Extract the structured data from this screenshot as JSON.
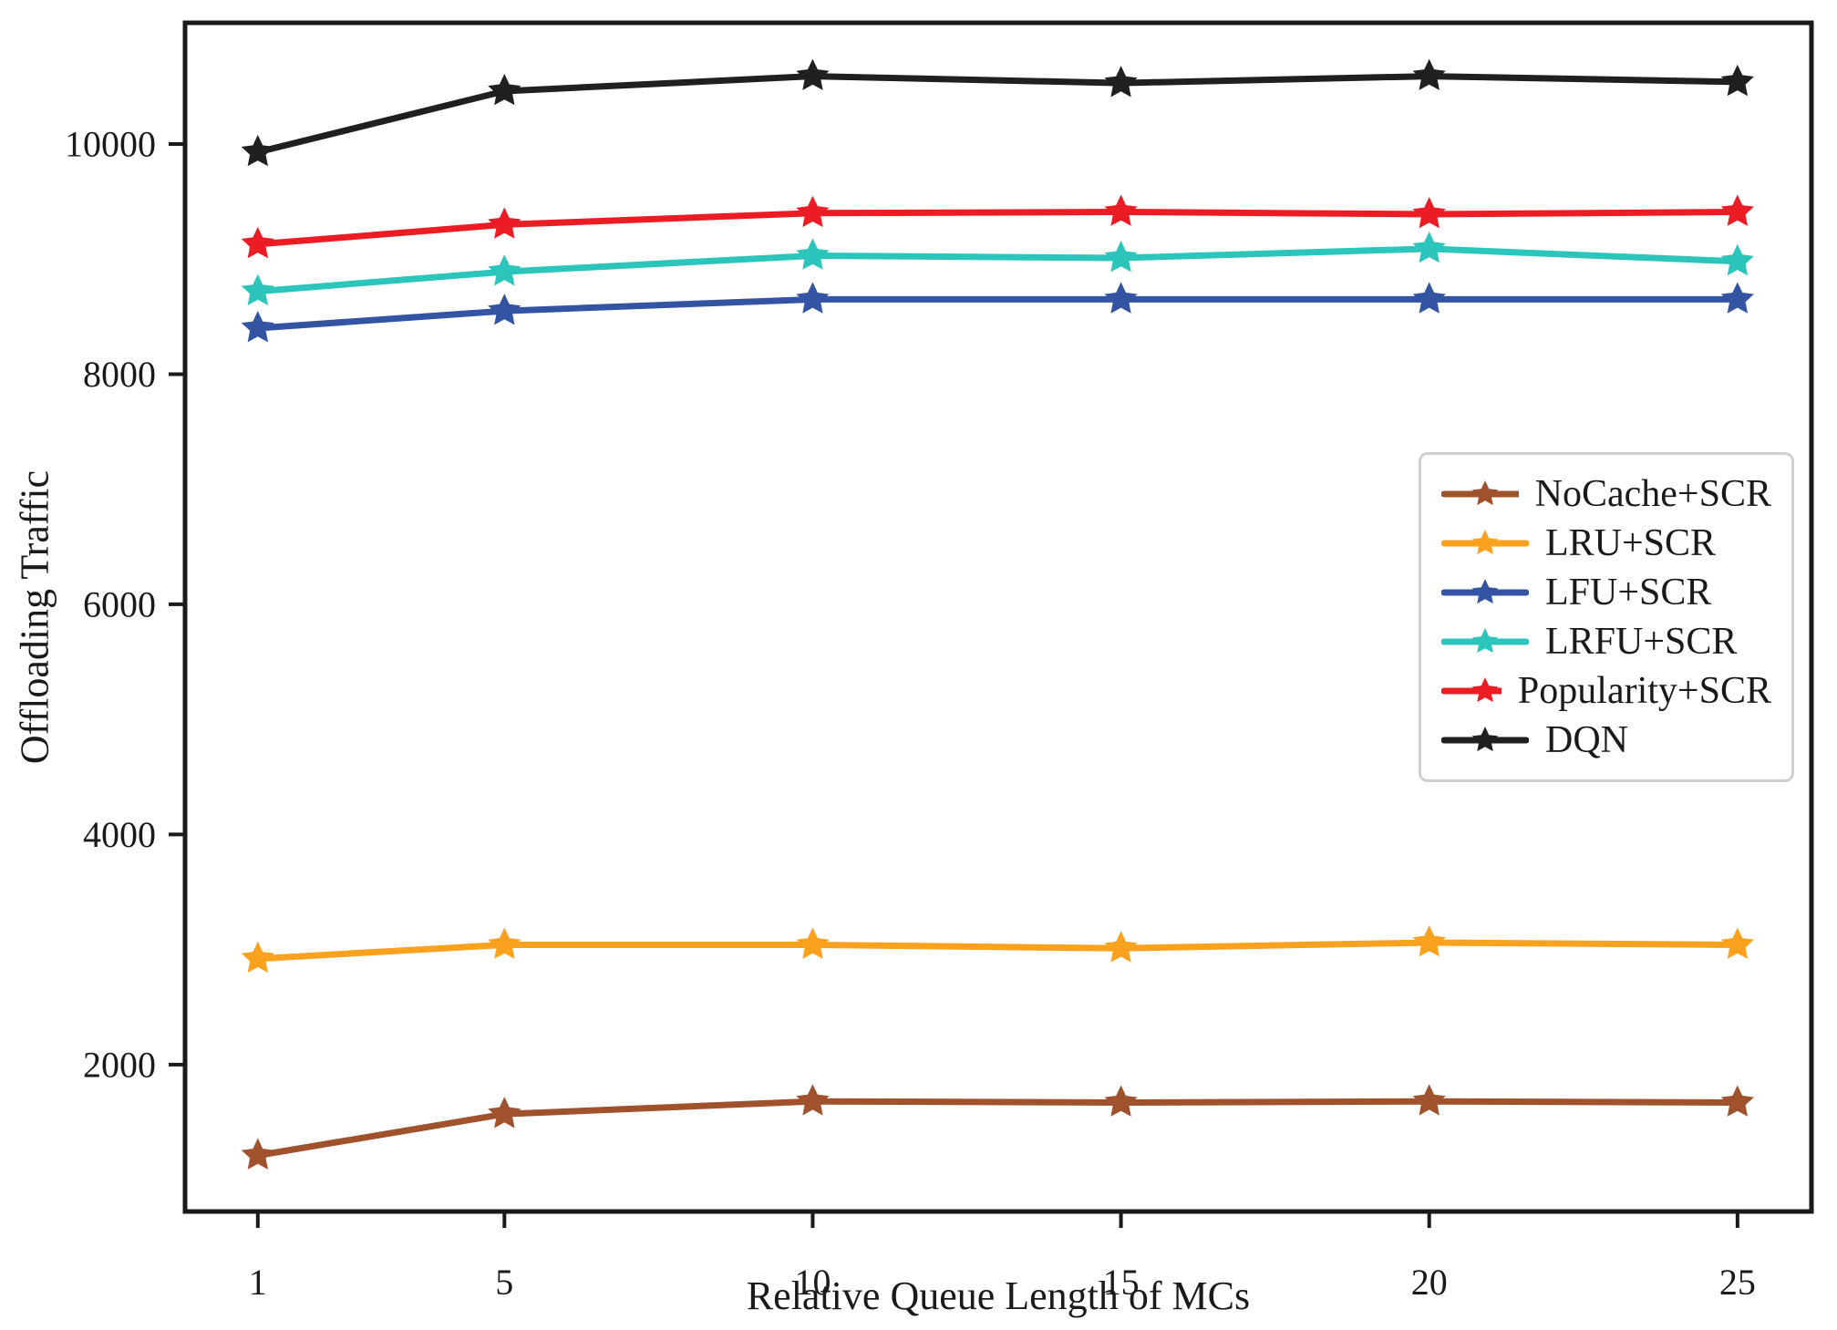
{
  "figure": {
    "background": "#ffffff",
    "axis_color": "#1a1a1a"
  },
  "chart_data": {
    "type": "line",
    "title": "",
    "xlabel": "Relative Queue Length of MCs",
    "ylabel": "Offloading Traffic",
    "x": [
      1,
      5,
      10,
      15,
      20,
      25
    ],
    "xticks": [
      "1",
      "5",
      "10",
      "15",
      "20",
      "25"
    ],
    "yticks": [
      "2000",
      "4000",
      "6000",
      "8000",
      "10000"
    ],
    "ytick_values": [
      2000,
      4000,
      6000,
      8000,
      10000
    ],
    "xlim": [
      -0.18,
      26.2
    ],
    "ylim": [
      723,
      11054
    ],
    "grid": false,
    "legend_position": "center-right",
    "marker": "star",
    "series": [
      {
        "name": "NoCache+SCR",
        "color": "#A0522D",
        "values": [
          1210,
          1570,
          1680,
          1670,
          1680,
          1670
        ]
      },
      {
        "name": "LRU+SCR",
        "color": "#FAA21E",
        "values": [
          2920,
          3040,
          3040,
          3010,
          3060,
          3040
        ]
      },
      {
        "name": "LFU+SCR",
        "color": "#3353A3",
        "values": [
          8400,
          8550,
          8650,
          8650,
          8650,
          8650
        ]
      },
      {
        "name": "LRFU+SCR",
        "color": "#2BC5BC",
        "values": [
          8720,
          8890,
          9030,
          9010,
          9090,
          8980
        ]
      },
      {
        "name": "Popularity+SCR",
        "color": "#EC1C24",
        "values": [
          9130,
          9300,
          9400,
          9410,
          9390,
          9410
        ]
      },
      {
        "name": "DQN",
        "color": "#221F1F",
        "values": [
          9930,
          10460,
          10590,
          10530,
          10590,
          10540
        ]
      }
    ]
  }
}
